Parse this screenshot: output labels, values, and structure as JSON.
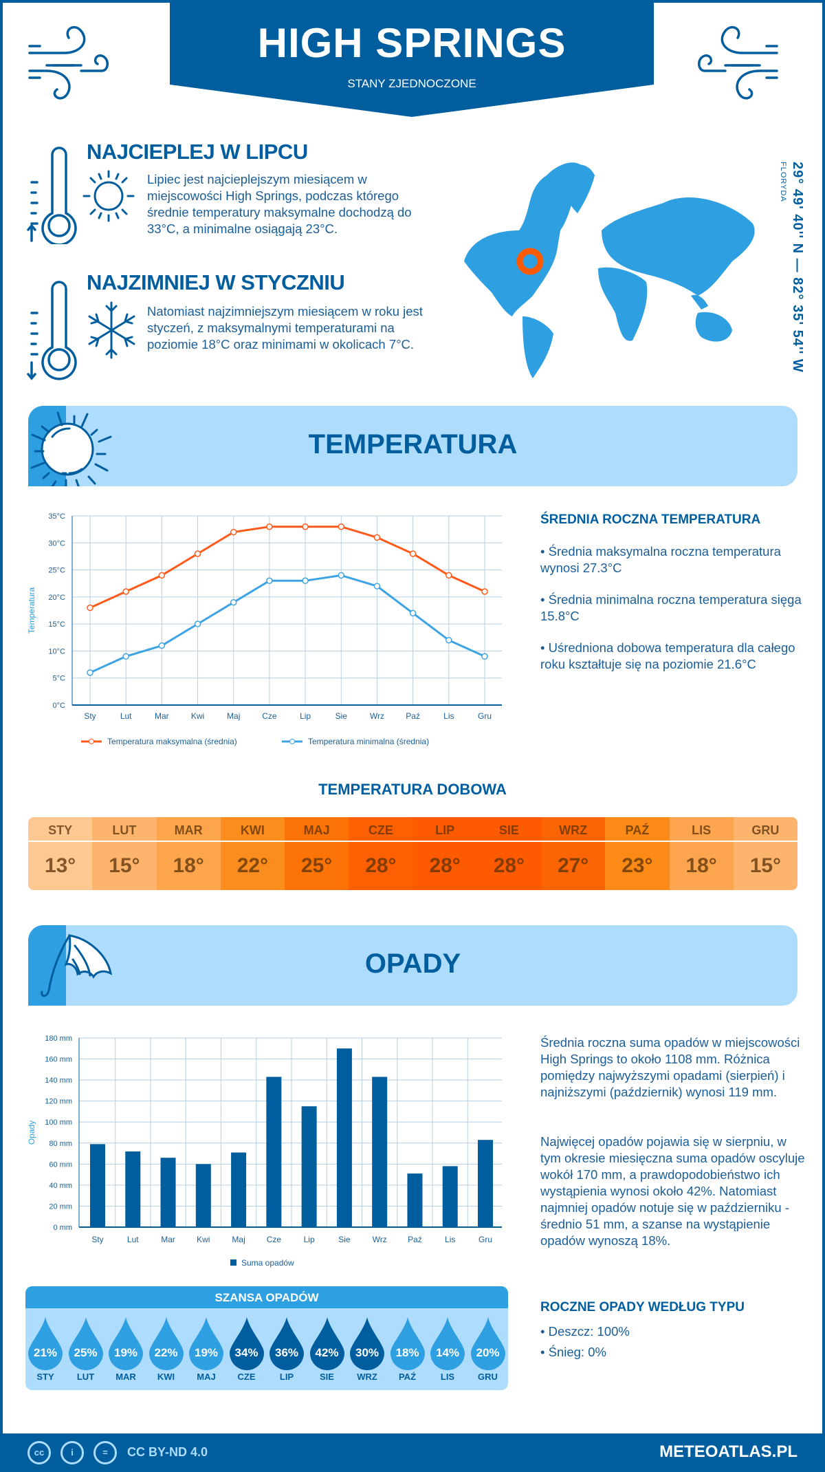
{
  "header": {
    "title": "HIGH SPRINGS",
    "subtitle": "STANY ZJEDNOCZONE"
  },
  "warmest": {
    "heading": "NAJCIEPLEJ W LIPCU",
    "text": "Lipiec jest najcieplejszym miesiącem w miejscowości High Springs, podczas którego średnie temperatury maksymalne dochodzą do 33°C, a minimalne osiągają 23°C."
  },
  "coldest": {
    "heading": "NAJZIMNIEJ W STYCZNIU",
    "text": "Natomiast najzimniejszym miesiącem w roku jest styczeń, z maksymalnymi temperaturami na poziomie 18°C oraz minimami w okolicach 7°C."
  },
  "location": {
    "coords": "29° 49' 40'' N — 82° 35' 54'' W",
    "region": "FLORYDA",
    "marker_color": "#ff5a00"
  },
  "temperature_section": {
    "title": "TEMPERATURA",
    "summary_heading": "ŚREDNIA ROCZNA TEMPERATURA",
    "bullets": [
      "• Średnia maksymalna roczna temperatura wynosi 27.3°C",
      "• Średnia minimalna roczna temperatura sięga 15.8°C",
      "• Uśredniona dobowa temperatura dla całego roku kształtuje się na poziomie 21.6°C"
    ],
    "daily_heading": "TEMPERATURA DOBOWA",
    "daily": [
      {
        "month": "STY",
        "value": "13°",
        "color": "#fdc891"
      },
      {
        "month": "LUT",
        "value": "15°",
        "color": "#fdb56d"
      },
      {
        "month": "MAR",
        "value": "18°",
        "color": "#fca54c"
      },
      {
        "month": "KWI",
        "value": "22°",
        "color": "#fb8c1e"
      },
      {
        "month": "MAJ",
        "value": "25°",
        "color": "#fc7408"
      },
      {
        "month": "CZE",
        "value": "28°",
        "color": "#fc6003"
      },
      {
        "month": "LIP",
        "value": "28°",
        "color": "#fd5a02"
      },
      {
        "month": "SIE",
        "value": "28°",
        "color": "#fd5a02"
      },
      {
        "month": "WRZ",
        "value": "27°",
        "color": "#fc6506"
      },
      {
        "month": "PAŹ",
        "value": "23°",
        "color": "#fb8a17"
      },
      {
        "month": "LIS",
        "value": "18°",
        "color": "#fca54e"
      },
      {
        "month": "GRU",
        "value": "15°",
        "color": "#fdb46d"
      }
    ]
  },
  "precip_section": {
    "title": "OPADY",
    "text1": "Średnia roczna suma opadów w miejscowości High Springs to około 1108 mm. Różnica pomiędzy najwyższymi opadami (sierpień) i najniższymi (październik) wynosi 119 mm.",
    "text2": "Najwięcej opadów pojawia się w sierpniu, w tym okresie miesięczna suma opadów oscyluje wokół 170 mm, a prawdopodobieństwo ich wystąpienia wynosi około 42%. Natomiast najmniej opadów notuje się w październiku - średnio 51 mm, a szanse na wystąpienie opadów wynoszą 18%.",
    "chance_heading": "SZANSA OPADÓW",
    "chance": [
      {
        "month": "STY",
        "value": "21%"
      },
      {
        "month": "LUT",
        "value": "25%"
      },
      {
        "month": "MAR",
        "value": "19%"
      },
      {
        "month": "KWI",
        "value": "22%"
      },
      {
        "month": "MAJ",
        "value": "19%"
      },
      {
        "month": "CZE",
        "value": "34%"
      },
      {
        "month": "LIP",
        "value": "36%"
      },
      {
        "month": "SIE",
        "value": "42%"
      },
      {
        "month": "WRZ",
        "value": "30%"
      },
      {
        "month": "PAŹ",
        "value": "18%"
      },
      {
        "month": "LIS",
        "value": "14%"
      },
      {
        "month": "GRU",
        "value": "20%"
      }
    ],
    "chance_colors": {
      "low": "#2e9fe0",
      "high": "#005e9f"
    },
    "type_heading": "ROCZNE OPADY WEDŁUG TYPU",
    "types": [
      "• Deszcz: 100%",
      "• Śnieg: 0%"
    ]
  },
  "footer": {
    "license": "CC BY-ND 4.0",
    "site": "METEOATLAS.PL",
    "icons": [
      "cc-icon",
      "by-icon",
      "nd-icon"
    ]
  },
  "chart_data": [
    {
      "type": "line",
      "categories": [
        "Sty",
        "Lut",
        "Mar",
        "Kwi",
        "Maj",
        "Cze",
        "Lip",
        "Sie",
        "Wrz",
        "Paź",
        "Lis",
        "Gru"
      ],
      "series": [
        {
          "name": "Temperatura maksymalna (średnia)",
          "color": "#ff5a1a",
          "values": [
            18,
            21,
            24,
            28,
            32,
            33,
            33,
            33,
            31,
            28,
            24,
            21
          ]
        },
        {
          "name": "Temperatura minimalna (średnia)",
          "color": "#3ea3e2",
          "values": [
            6,
            9,
            11,
            15,
            19,
            23,
            23,
            24,
            22,
            17,
            12,
            9
          ]
        }
      ],
      "ylabel": "Temperatura",
      "ylim": [
        0,
        35
      ],
      "yticks": [
        "0°C",
        "5°C",
        "10°C",
        "15°C",
        "20°C",
        "25°C",
        "30°C",
        "35°C"
      ],
      "grid": true,
      "legend": "bottom"
    },
    {
      "type": "bar",
      "categories": [
        "Sty",
        "Lut",
        "Mar",
        "Kwi",
        "Maj",
        "Cze",
        "Lip",
        "Sie",
        "Wrz",
        "Paź",
        "Lis",
        "Gru"
      ],
      "series": [
        {
          "name": "Suma opadów",
          "color": "#005e9f",
          "values": [
            79,
            72,
            66,
            60,
            71,
            143,
            115,
            170,
            143,
            51,
            58,
            83
          ]
        }
      ],
      "ylabel": "Opady",
      "ylim": [
        0,
        180
      ],
      "yticks": [
        "0 mm",
        "20 mm",
        "40 mm",
        "60 mm",
        "80 mm",
        "100 mm",
        "120 mm",
        "140 mm",
        "160 mm",
        "180 mm"
      ],
      "grid": true,
      "legend": "bottom"
    }
  ]
}
